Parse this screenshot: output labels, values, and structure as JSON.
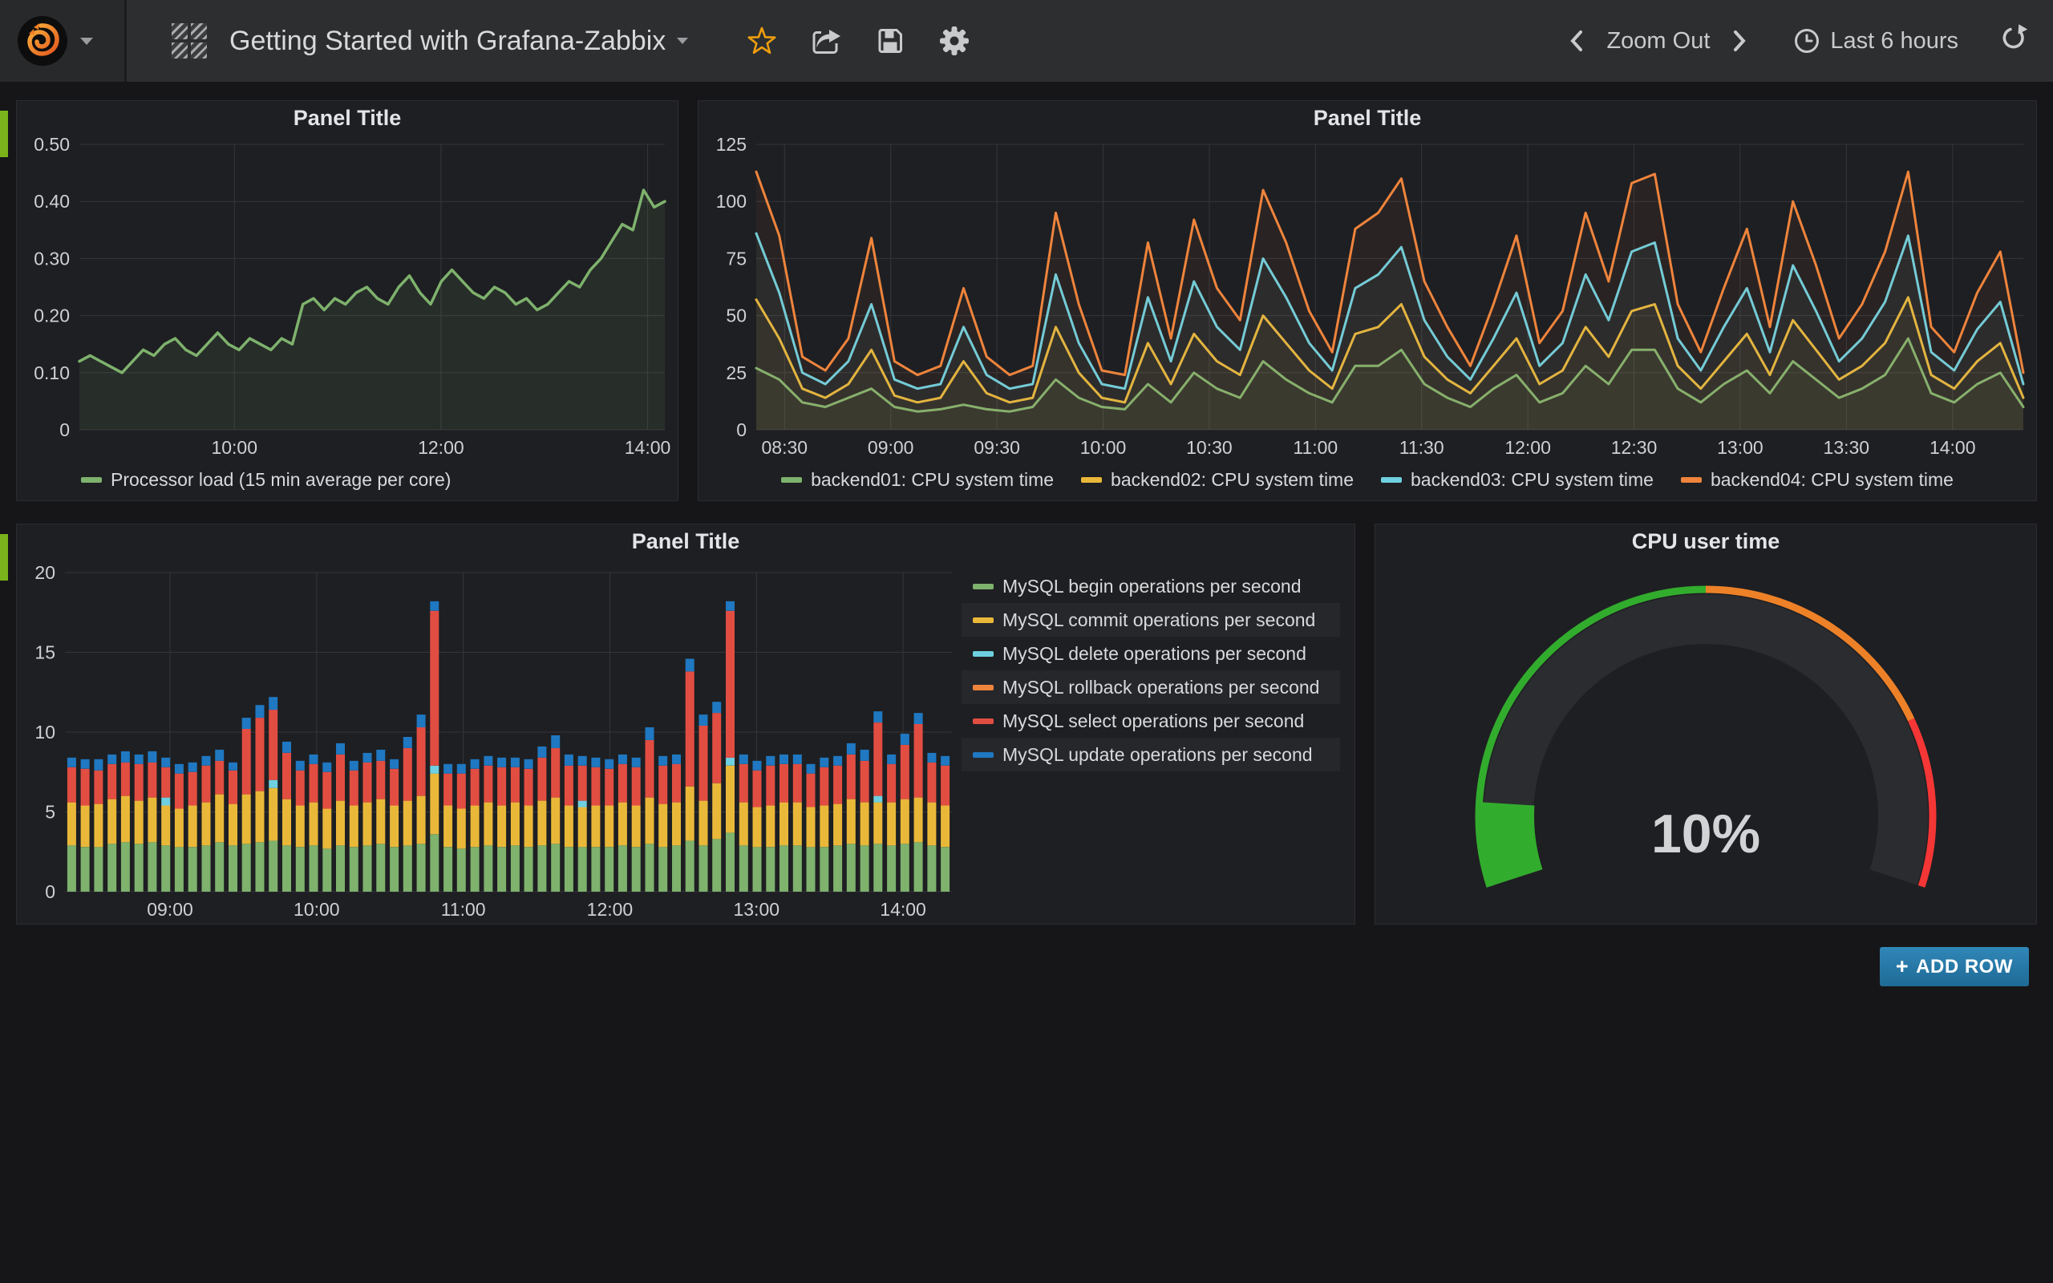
{
  "navbar": {
    "dashboard_title": "Getting Started with Grafana-Zabbix",
    "zoom_out_label": "Zoom Out",
    "time_range_label": "Last 6 hours"
  },
  "add_row": {
    "plus": "+",
    "label": "ADD ROW"
  },
  "icons": [
    "grafana-logo",
    "dropdown-caret",
    "dashboard-grid-icon",
    "title-caret-icon",
    "star-icon",
    "share-icon",
    "save-icon",
    "gear-icon",
    "chevron-left-icon",
    "chevron-right-icon",
    "clock-icon",
    "refresh-icon",
    "plus-icon",
    "row-handle"
  ],
  "ui_colors": {
    "page_bg": "#161618",
    "panel_bg": "#1e1f22",
    "navbar_bg": "#2d2e30",
    "star_orange": "#ef9f0e",
    "add_row_blue": "#2478a8",
    "row_handle_green": "#7ab31a",
    "palette_green": "#7EB26D",
    "palette_yellow": "#EAB839",
    "palette_cyan": "#6ED0E0",
    "palette_orange": "#EF843C",
    "palette_red": "#E24D42",
    "palette_blue": "#1F78C1"
  },
  "chart_data": [
    {
      "type": "line",
      "title": "Panel Title",
      "xmin": 510,
      "xmax": 850,
      "xticks": [
        600,
        720,
        840
      ],
      "ymax": 0.5,
      "yticks": [
        0,
        0.1,
        0.2,
        0.3,
        0.4,
        0.5
      ],
      "ydec": 2,
      "grid": true,
      "legend_position": "bottom-left",
      "series": [
        {
          "name": "Processor load (15 min average per core)",
          "color": "#7EB26D",
          "values": [
            0.12,
            0.13,
            0.12,
            0.11,
            0.1,
            0.12,
            0.14,
            0.13,
            0.15,
            0.16,
            0.14,
            0.13,
            0.15,
            0.17,
            0.15,
            0.14,
            0.16,
            0.15,
            0.14,
            0.16,
            0.15,
            0.22,
            0.23,
            0.21,
            0.23,
            0.22,
            0.24,
            0.25,
            0.23,
            0.22,
            0.25,
            0.27,
            0.24,
            0.22,
            0.26,
            0.28,
            0.26,
            0.24,
            0.23,
            0.25,
            0.24,
            0.22,
            0.23,
            0.21,
            0.22,
            0.24,
            0.26,
            0.25,
            0.28,
            0.3,
            0.33,
            0.36,
            0.35,
            0.42,
            0.39,
            0.4
          ]
        }
      ]
    },
    {
      "type": "line",
      "title": "Panel Title",
      "xmin": 502,
      "xmax": 860,
      "xticks": [
        510,
        540,
        570,
        600,
        630,
        660,
        690,
        720,
        750,
        780,
        810,
        840
      ],
      "ymax": 125,
      "yticks": [
        0,
        25,
        50,
        75,
        100,
        125
      ],
      "ydec": 0,
      "grid": true,
      "legend_position": "bottom-center",
      "series": [
        {
          "name": "backend01: CPU system time",
          "color": "#7EB26D",
          "values": [
            27,
            22,
            12,
            10,
            14,
            18,
            10,
            8,
            9,
            11,
            9,
            8,
            10,
            22,
            14,
            10,
            9,
            20,
            12,
            25,
            18,
            14,
            30,
            22,
            16,
            12,
            28,
            28,
            35,
            20,
            14,
            10,
            18,
            24,
            12,
            16,
            28,
            20,
            35,
            35,
            18,
            12,
            20,
            26,
            16,
            30,
            22,
            14,
            18,
            24,
            40,
            16,
            12,
            20,
            25,
            10
          ]
        },
        {
          "name": "backend02: CPU system time",
          "color": "#EAB839",
          "values": [
            57,
            40,
            18,
            14,
            20,
            35,
            15,
            12,
            14,
            30,
            16,
            12,
            14,
            45,
            25,
            14,
            12,
            38,
            20,
            42,
            30,
            24,
            50,
            38,
            26,
            18,
            42,
            45,
            55,
            32,
            22,
            16,
            28,
            40,
            20,
            26,
            45,
            32,
            52,
            55,
            28,
            18,
            30,
            42,
            24,
            48,
            35,
            22,
            28,
            38,
            58,
            24,
            18,
            30,
            38,
            14
          ]
        },
        {
          "name": "backend03: CPU system time",
          "color": "#6ED0E0",
          "values": [
            86,
            60,
            25,
            20,
            30,
            55,
            22,
            18,
            20,
            45,
            24,
            18,
            20,
            68,
            38,
            20,
            18,
            58,
            30,
            65,
            45,
            35,
            75,
            58,
            38,
            26,
            62,
            68,
            80,
            48,
            32,
            22,
            40,
            60,
            28,
            38,
            68,
            48,
            78,
            82,
            40,
            26,
            45,
            62,
            34,
            72,
            52,
            30,
            40,
            56,
            85,
            34,
            26,
            44,
            56,
            20
          ]
        },
        {
          "name": "backend04: CPU system time",
          "color": "#EF843C",
          "values": [
            113,
            85,
            32,
            26,
            40,
            84,
            30,
            24,
            28,
            62,
            32,
            24,
            28,
            95,
            55,
            26,
            24,
            82,
            40,
            92,
            62,
            48,
            105,
            82,
            52,
            34,
            88,
            95,
            110,
            65,
            45,
            28,
            55,
            85,
            38,
            52,
            95,
            65,
            108,
            112,
            55,
            34,
            62,
            88,
            45,
            100,
            72,
            40,
            55,
            78,
            113,
            45,
            34,
            60,
            78,
            25
          ]
        }
      ]
    },
    {
      "type": "bar",
      "title": "Panel Title",
      "xmin": 497,
      "xmax": 860,
      "xticks": [
        540,
        600,
        660,
        720,
        780,
        840
      ],
      "ymax": 20,
      "yticks": [
        0,
        5,
        10,
        15,
        20
      ],
      "ydec": 0,
      "grid": true,
      "legend_position": "right",
      "stacked": true,
      "series": [
        {
          "name": "MySQL begin operations per second",
          "color": "#7EB26D"
        },
        {
          "name": "MySQL commit operations per second",
          "color": "#EAB839"
        },
        {
          "name": "MySQL delete operations per second",
          "color": "#6ED0E0"
        },
        {
          "name": "MySQL rollback operations per second",
          "color": "#EF843C"
        },
        {
          "name": "MySQL select operations per second",
          "color": "#E24D42"
        },
        {
          "name": "MySQL update operations per second",
          "color": "#1F78C1"
        }
      ],
      "bars": [
        [
          2.9,
          2.7,
          0,
          0,
          2.2,
          0.6
        ],
        [
          2.8,
          2.6,
          0,
          0,
          2.3,
          0.6
        ],
        [
          2.8,
          2.7,
          0,
          0,
          2.1,
          0.7
        ],
        [
          3.0,
          2.8,
          0,
          0,
          2.2,
          0.6
        ],
        [
          3.1,
          2.9,
          0,
          0,
          2.1,
          0.7
        ],
        [
          3.0,
          2.7,
          0,
          0,
          2.3,
          0.6
        ],
        [
          3.1,
          2.8,
          0,
          0,
          2.2,
          0.7
        ],
        [
          2.9,
          2.5,
          0.5,
          0,
          1.9,
          0.6
        ],
        [
          2.8,
          2.4,
          0,
          0,
          2.2,
          0.6
        ],
        [
          2.8,
          2.6,
          0,
          0,
          2.1,
          0.6
        ],
        [
          2.9,
          2.7,
          0,
          0,
          2.3,
          0.6
        ],
        [
          3.1,
          3.0,
          0,
          0,
          2.1,
          0.7
        ],
        [
          2.9,
          2.6,
          0,
          0,
          2.1,
          0.5
        ],
        [
          3.0,
          3.1,
          0,
          0,
          4.1,
          0.7
        ],
        [
          3.1,
          3.2,
          0,
          0,
          4.6,
          0.8
        ],
        [
          3.2,
          3.3,
          0.5,
          0,
          4.4,
          0.8
        ],
        [
          2.9,
          2.9,
          0,
          0,
          2.9,
          0.7
        ],
        [
          2.8,
          2.6,
          0,
          0,
          2.2,
          0.6
        ],
        [
          2.9,
          2.7,
          0,
          0,
          2.4,
          0.6
        ],
        [
          2.7,
          2.5,
          0,
          0,
          2.3,
          0.6
        ],
        [
          2.9,
          2.8,
          0,
          0,
          2.9,
          0.7
        ],
        [
          2.8,
          2.6,
          0,
          0,
          2.2,
          0.6
        ],
        [
          2.9,
          2.7,
          0,
          0,
          2.5,
          0.6
        ],
        [
          3.0,
          2.8,
          0,
          0,
          2.4,
          0.7
        ],
        [
          2.8,
          2.6,
          0,
          0,
          2.3,
          0.6
        ],
        [
          2.9,
          2.8,
          0,
          0,
          3.3,
          0.7
        ],
        [
          3.0,
          3.0,
          0,
          0,
          4.3,
          0.8
        ],
        [
          3.6,
          3.8,
          0.5,
          0,
          9.7,
          0.6
        ],
        [
          2.8,
          2.6,
          0,
          0,
          2.0,
          0.6
        ],
        [
          2.7,
          2.5,
          0,
          0,
          2.2,
          0.6
        ],
        [
          2.8,
          2.6,
          0,
          0,
          2.3,
          0.6
        ],
        [
          2.9,
          2.7,
          0,
          0,
          2.3,
          0.6
        ],
        [
          2.8,
          2.6,
          0,
          0,
          2.4,
          0.6
        ],
        [
          2.9,
          2.7,
          0,
          0,
          2.2,
          0.6
        ],
        [
          2.8,
          2.6,
          0,
          0,
          2.3,
          0.6
        ],
        [
          2.9,
          2.8,
          0,
          0,
          2.7,
          0.7
        ],
        [
          3.0,
          2.9,
          0,
          0,
          3.1,
          0.8
        ],
        [
          2.8,
          2.6,
          0,
          0,
          2.5,
          0.7
        ],
        [
          2.8,
          2.5,
          0.4,
          0,
          2.2,
          0.6
        ],
        [
          2.8,
          2.6,
          0,
          0,
          2.4,
          0.6
        ],
        [
          2.8,
          2.6,
          0,
          0,
          2.3,
          0.6
        ],
        [
          2.9,
          2.7,
          0,
          0,
          2.4,
          0.6
        ],
        [
          2.8,
          2.6,
          0,
          0,
          2.4,
          0.6
        ],
        [
          3.0,
          2.9,
          0,
          0,
          3.6,
          0.8
        ],
        [
          2.8,
          2.7,
          0,
          0,
          2.4,
          0.6
        ],
        [
          2.9,
          2.7,
          0,
          0,
          2.4,
          0.6
        ],
        [
          3.2,
          3.4,
          0,
          0,
          7.2,
          0.8
        ],
        [
          2.9,
          2.8,
          0,
          0,
          4.7,
          0.7
        ],
        [
          3.3,
          3.5,
          0,
          0,
          4.4,
          0.7
        ],
        [
          3.7,
          4.2,
          0.5,
          0,
          9.2,
          0.6
        ],
        [
          2.9,
          2.7,
          0,
          0,
          2.4,
          0.6
        ],
        [
          2.8,
          2.5,
          0,
          0,
          2.3,
          0.6
        ],
        [
          2.8,
          2.6,
          0,
          0,
          2.5,
          0.6
        ],
        [
          2.9,
          2.7,
          0,
          0,
          2.4,
          0.6
        ],
        [
          2.9,
          2.7,
          0,
          0,
          2.4,
          0.6
        ],
        [
          2.8,
          2.5,
          0,
          0,
          2.1,
          0.6
        ],
        [
          2.8,
          2.6,
          0,
          0,
          2.4,
          0.6
        ],
        [
          2.9,
          2.6,
          0,
          0,
          2.4,
          0.6
        ],
        [
          3.0,
          2.8,
          0,
          0,
          2.8,
          0.7
        ],
        [
          2.9,
          2.7,
          0,
          0,
          2.6,
          0.7
        ],
        [
          3.0,
          2.6,
          0.4,
          0,
          4.6,
          0.7
        ],
        [
          2.9,
          2.7,
          0,
          0,
          2.4,
          0.6
        ],
        [
          3.0,
          2.8,
          0,
          0,
          3.4,
          0.7
        ],
        [
          3.1,
          2.8,
          0,
          0,
          4.6,
          0.7
        ],
        [
          2.9,
          2.7,
          0,
          0,
          2.5,
          0.6
        ],
        [
          2.8,
          2.6,
          0,
          0,
          2.5,
          0.6
        ]
      ]
    },
    {
      "type": "gauge",
      "title": "CPU user time",
      "min": 0,
      "max": 100,
      "value": 10,
      "value_text": "10%",
      "thresholds": [
        {
          "to": 50,
          "color": "#32AC2D"
        },
        {
          "to": 80,
          "color": "#ED8128"
        },
        {
          "to": 100,
          "color": "#F53636"
        }
      ]
    }
  ]
}
